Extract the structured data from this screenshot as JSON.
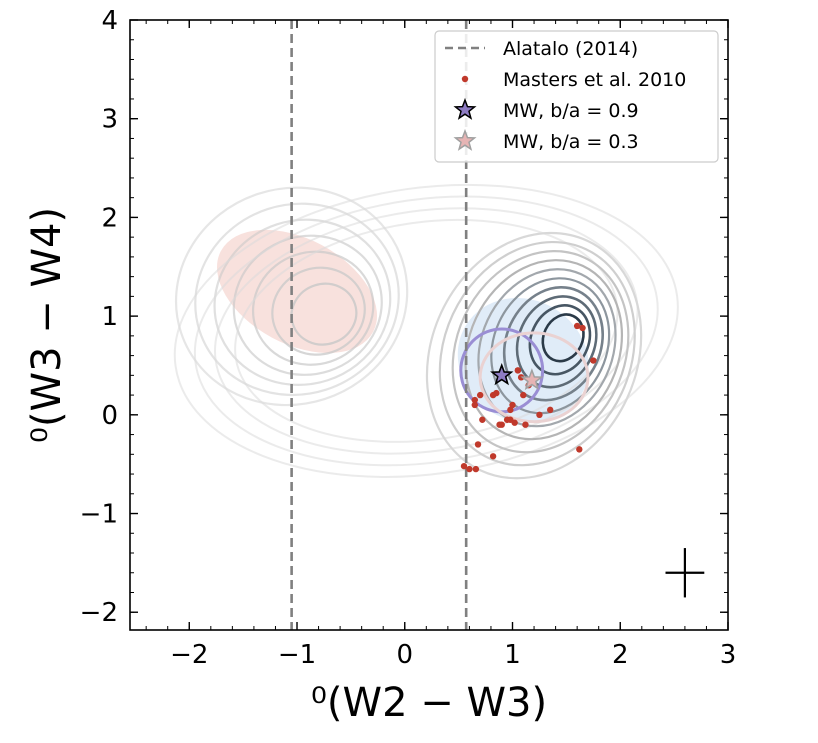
{
  "chart_data": {
    "type": "scatter",
    "xlabel": "⁰(W2 − W3)",
    "ylabel": "⁰(W3 − W4)",
    "xlim": [
      -2.55,
      3.0
    ],
    "ylim": [
      -2.18,
      4.0
    ],
    "xticks": [
      -2,
      -1,
      0,
      1,
      2,
      3
    ],
    "yticks": [
      -2,
      -1,
      0,
      1,
      2,
      3,
      4
    ],
    "xtick_labels": [
      "−2",
      "−1",
      "0",
      "1",
      "2",
      "3"
    ],
    "ytick_labels": [
      "−2",
      "−1",
      "0",
      "1",
      "2",
      "3",
      "4"
    ],
    "grid": false,
    "legend_position": "top-right",
    "legend": [
      {
        "label": "Alatalo (2014)",
        "marker": "dashed-line",
        "color": "#808080"
      },
      {
        "label": "Masters et al. 2010",
        "marker": "dot",
        "color": "#c0392b"
      },
      {
        "label": "MW, b/a = 0.9",
        "marker": "star",
        "color": "#8e7cc3",
        "edge": "#000000"
      },
      {
        "label": "MW, b/a = 0.3",
        "marker": "star",
        "color": "#e6b4b4",
        "edge": "#a0a0a0"
      }
    ],
    "vertical_lines": [
      {
        "x": -1.05,
        "series": "Alatalo (2014)",
        "color": "#808080"
      },
      {
        "x": 0.57,
        "series": "Alatalo (2014)",
        "color": "#808080"
      }
    ],
    "shaded_regions": [
      {
        "kind": "ellipse",
        "cx": -1.0,
        "cy": 1.25,
        "rx": 1.6,
        "ry": 0.65,
        "angle_deg": -62,
        "color": "#f6d9d4",
        "opacity": 0.8
      },
      {
        "kind": "ellipse",
        "cx": 1.1,
        "cy": 0.55,
        "rx": 1.25,
        "ry": 0.75,
        "angle_deg": -58,
        "color": "#dbe9f7",
        "opacity": 0.85
      }
    ],
    "contours": {
      "description": "density contours",
      "outer_color": "#dcdcdc",
      "inner_color": "#2b3a48"
    },
    "small_contours": [
      {
        "cx": 0.9,
        "cy": 0.45,
        "rx": 0.38,
        "ry": 0.42,
        "color": "#9a8ed4"
      },
      {
        "cx": 1.2,
        "cy": 0.38,
        "rx": 0.5,
        "ry": 0.45,
        "color": "#ead2d2"
      }
    ],
    "series": [
      {
        "name": "Masters et al. 2010",
        "color": "#c0392b",
        "x": [
          0.65,
          0.7,
          0.72,
          0.68,
          0.82,
          0.88,
          0.95,
          0.98,
          1.0,
          1.02,
          1.05,
          1.08,
          1.1,
          1.12,
          1.15,
          1.25,
          1.35,
          0.6,
          0.66,
          0.55,
          0.65,
          0.82,
          1.05,
          1.6,
          1.65,
          1.75,
          1.62,
          0.9,
          0.98,
          0.85
        ],
        "y": [
          0.1,
          0.2,
          -0.05,
          -0.3,
          -0.42,
          -0.1,
          -0.05,
          0.05,
          0.1,
          -0.08,
          0.45,
          0.38,
          0.2,
          -0.1,
          0.3,
          0.0,
          0.05,
          -0.55,
          -0.55,
          -0.52,
          0.15,
          0.2,
          0.45,
          0.9,
          0.88,
          0.55,
          -0.35,
          -0.1,
          -0.05,
          0.22
        ]
      },
      {
        "name": "MW, b/a = 0.9",
        "color": "#8e7cc3",
        "x": [
          0.9
        ],
        "y": [
          0.4
        ]
      },
      {
        "name": "MW, b/a = 0.3",
        "color": "#e6b4b4",
        "x": [
          1.18
        ],
        "y": [
          0.35
        ]
      }
    ],
    "error_bar": {
      "x": 2.6,
      "y": -1.6,
      "xerr": 0.18,
      "yerr": 0.25,
      "color": "#000000"
    }
  }
}
